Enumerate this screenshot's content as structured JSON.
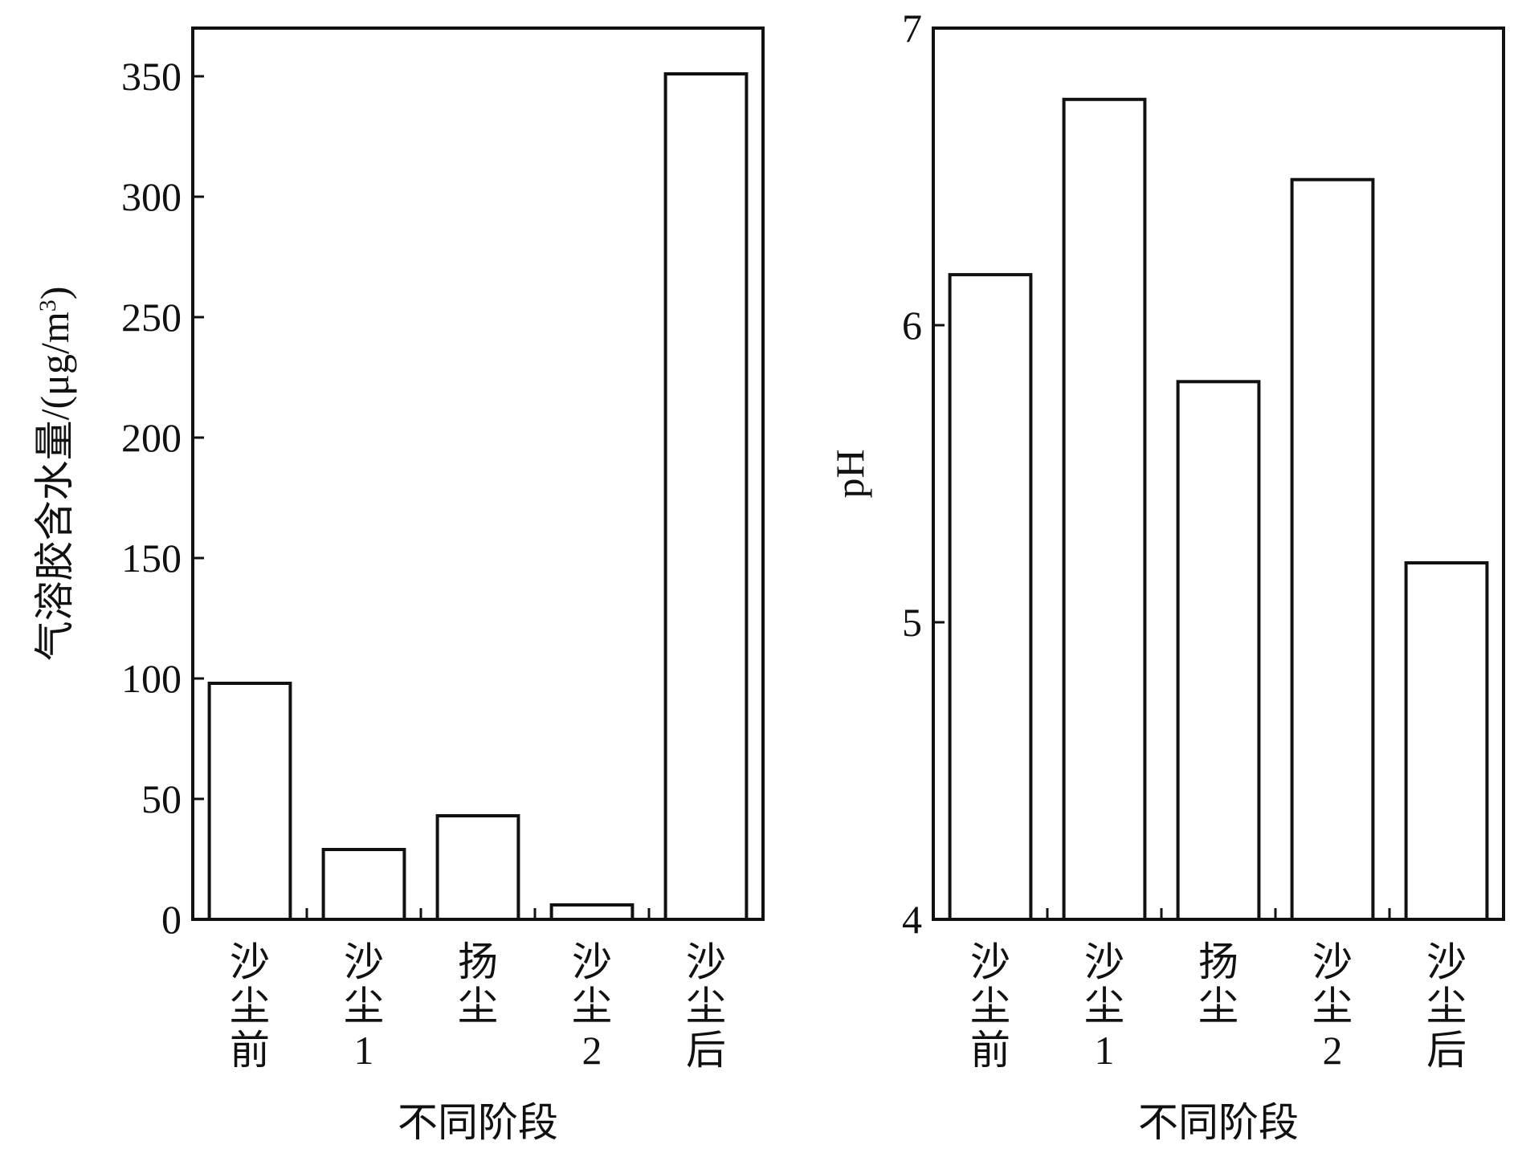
{
  "chart_data": [
    {
      "type": "bar",
      "title": "",
      "xlabel": "不同阶段",
      "ylabel": "气溶胶含水量/(μg/m³)",
      "ylabel_main": "气溶胶含水量/(μg/m",
      "ylabel_sup": "3",
      "ylabel_close": ")",
      "categories": [
        "沙尘前",
        "沙尘1",
        "扬尘",
        "沙尘2",
        "沙尘后"
      ],
      "values": [
        98,
        29,
        43,
        6,
        351
      ],
      "ylim": [
        0,
        370
      ],
      "yticks": [
        0,
        50,
        100,
        150,
        200,
        250,
        300,
        350
      ],
      "ytick_labels": [
        "0",
        "50",
        "100",
        "150",
        "200",
        "250",
        "300",
        "350"
      ],
      "grid": false,
      "legend": "none",
      "bar_fill": "#ffffff",
      "bar_stroke": "#111111"
    },
    {
      "type": "bar",
      "title": "",
      "xlabel": "不同阶段",
      "ylabel": "pH",
      "categories": [
        "沙尘前",
        "沙尘1",
        "扬尘",
        "沙尘2",
        "沙尘后"
      ],
      "values": [
        6.17,
        6.76,
        5.81,
        6.49,
        5.2
      ],
      "ylim": [
        4,
        7
      ],
      "yticks": [
        4,
        5,
        6,
        7
      ],
      "ytick_labels": [
        "4",
        "5",
        "6",
        "7"
      ],
      "grid": false,
      "legend": "none",
      "bar_fill": "#ffffff",
      "bar_stroke": "#111111"
    }
  ]
}
